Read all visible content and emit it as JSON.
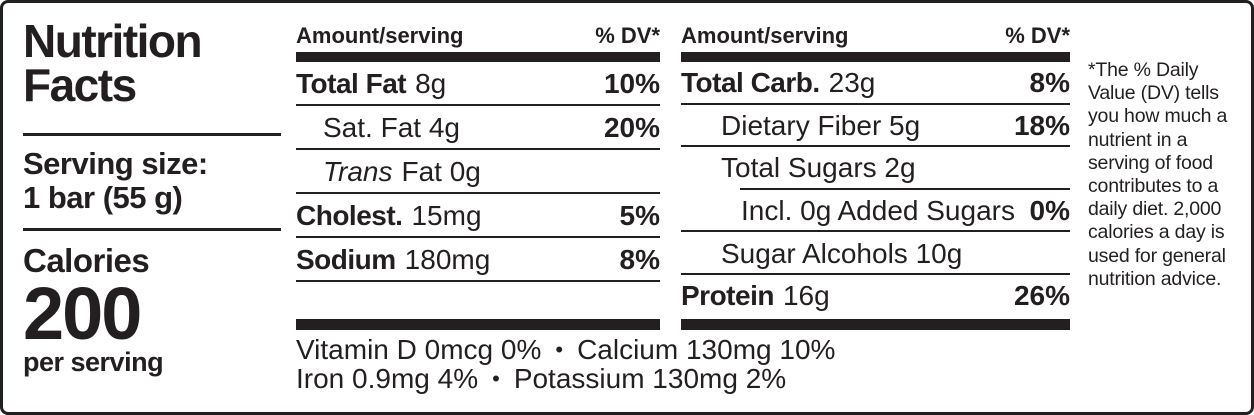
{
  "ink_color": "#231f20",
  "left_panel": {
    "title_line1": "Nutrition",
    "title_line2": "Facts",
    "serving_size_label": "Serving size:",
    "serving_size_value": "1 bar (55 g)",
    "calories_label": "Calories",
    "calories_value": "200",
    "calories_unit": "per serving"
  },
  "nutrient_columns": [
    {
      "header": {
        "amount_label": "Amount/serving",
        "dv_label": "% DV*"
      },
      "rows": [
        {
          "segments": [
            {
              "text": "Total Fat",
              "style": "heavy"
            },
            {
              "text": "8g",
              "style": "plain"
            }
          ],
          "dv": "10%",
          "indent": 0,
          "rule_below": "full"
        },
        {
          "segments": [
            {
              "text": "Sat. Fat 4g",
              "style": "plain"
            }
          ],
          "dv": "20%",
          "indent": 1,
          "rule_below": "full"
        },
        {
          "segments": [
            {
              "text": "Trans",
              "style": "italic"
            },
            {
              "text": "Fat 0g",
              "style": "plain"
            }
          ],
          "dv": "",
          "indent": 1,
          "rule_below": "full"
        },
        {
          "segments": [
            {
              "text": "Cholest.",
              "style": "heavy"
            },
            {
              "text": "15mg",
              "style": "plain"
            }
          ],
          "dv": "5%",
          "indent": 0,
          "rule_below": "full"
        },
        {
          "segments": [
            {
              "text": "Sodium",
              "style": "heavy"
            },
            {
              "text": "180mg",
              "style": "plain"
            }
          ],
          "dv": "8%",
          "indent": 0,
          "rule_below": "full"
        }
      ]
    },
    {
      "header": {
        "amount_label": "Amount/serving",
        "dv_label": "% DV*"
      },
      "rows": [
        {
          "segments": [
            {
              "text": "Total Carb.",
              "style": "heavy"
            },
            {
              "text": "23g",
              "style": "plain"
            }
          ],
          "dv": "8%",
          "indent": 0,
          "rule_below": "full"
        },
        {
          "segments": [
            {
              "text": "Dietary Fiber 5g",
              "style": "plain"
            }
          ],
          "dv": "18%",
          "indent": 1,
          "rule_below": "full"
        },
        {
          "segments": [
            {
              "text": "Total Sugars 2g",
              "style": "plain"
            }
          ],
          "dv": "",
          "indent": 1,
          "rule_below": "indent"
        },
        {
          "segments": [
            {
              "text": "Incl. 0g Added Sugars",
              "style": "plain"
            }
          ],
          "dv": "0%",
          "indent": 2,
          "rule_below": "full"
        },
        {
          "segments": [
            {
              "text": "Sugar Alcohols 10g",
              "style": "plain"
            }
          ],
          "dv": "",
          "indent": 1,
          "rule_below": "full"
        },
        {
          "segments": [
            {
              "text": "Protein",
              "style": "heavy"
            },
            {
              "text": "16g",
              "style": "plain"
            }
          ],
          "dv": "26%",
          "indent": 0,
          "rule_below": "none"
        }
      ]
    }
  ],
  "micronutrients": {
    "bullet": "•",
    "lines": [
      [
        "Vitamin D 0mcg 0%",
        "Calcium 130mg 10%"
      ],
      [
        "Iron 0.9mg 4%",
        "Potassium 130mg 2%"
      ]
    ]
  },
  "footnote": "*The % Daily Value (DV) tells you how much a nutrient in a serving of food contributes to a daily diet. 2,000 calories a day is used for general nutrition advice."
}
